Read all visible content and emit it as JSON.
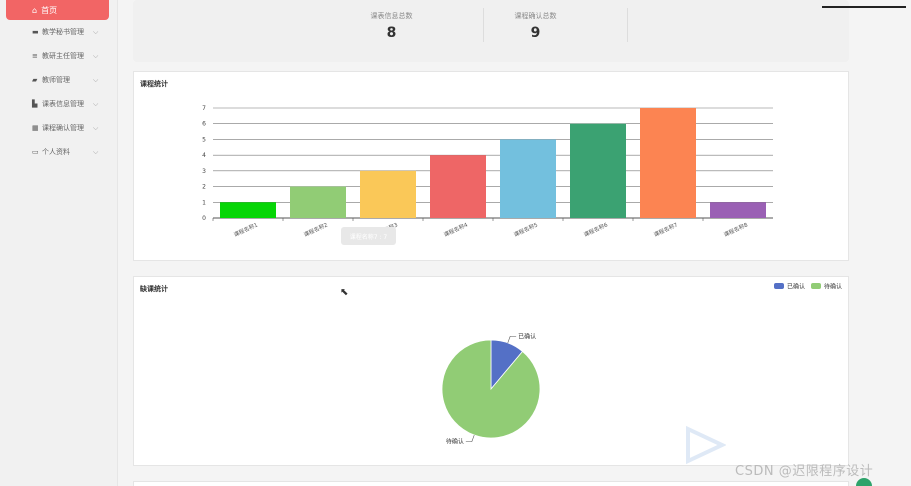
{
  "sidebar": {
    "home": {
      "label": "首页",
      "icon": "home-icon"
    },
    "items": [
      {
        "label": "教学秘书管理",
        "icon": "chat-icon"
      },
      {
        "label": "教研主任管理",
        "icon": "list-icon"
      },
      {
        "label": "教师管理",
        "icon": "briefcase-icon"
      },
      {
        "label": "课表信息管理",
        "icon": "folder-icon"
      },
      {
        "label": "课程确认管理",
        "icon": "grid-icon"
      },
      {
        "label": "个人资料",
        "icon": "calendar-icon"
      }
    ]
  },
  "stats": [
    {
      "title": "课表信息总数",
      "value": "8"
    },
    {
      "title": "课程确认总数",
      "value": "9"
    }
  ],
  "course_chart": {
    "title": "课程统计",
    "tooltip": "课程名称7 : 7"
  },
  "absence_chart": {
    "title": "缺课统计"
  },
  "watermark": "CSDN @迟限程序设计",
  "colors": {
    "accent": "#f26565",
    "bars": [
      "#07d607",
      "#91cc75",
      "#fac858",
      "#ee6666",
      "#73c0de",
      "#3ba272",
      "#fc8452",
      "#9a60b4"
    ],
    "pie_confirmed": "#5470c6",
    "pie_pending": "#91cc75"
  },
  "chart_data": [
    {
      "type": "bar",
      "title": "课程统计",
      "categories": [
        "课程名称1",
        "课程名称2",
        "课程名称3",
        "课程名称4",
        "课程名称5",
        "课程名称6",
        "课程名称7",
        "课程名称8"
      ],
      "values": [
        1,
        2,
        3,
        4,
        5,
        6,
        7,
        1
      ],
      "ylim": [
        0,
        7
      ],
      "yticks": [
        0,
        1,
        2,
        3,
        4,
        5,
        6,
        7
      ],
      "grid": true
    },
    {
      "type": "pie",
      "title": "缺课统计",
      "legend_position": "top-right",
      "series": [
        {
          "name": "已确认",
          "value": 1
        },
        {
          "name": "待确认",
          "value": 8
        }
      ]
    }
  ]
}
